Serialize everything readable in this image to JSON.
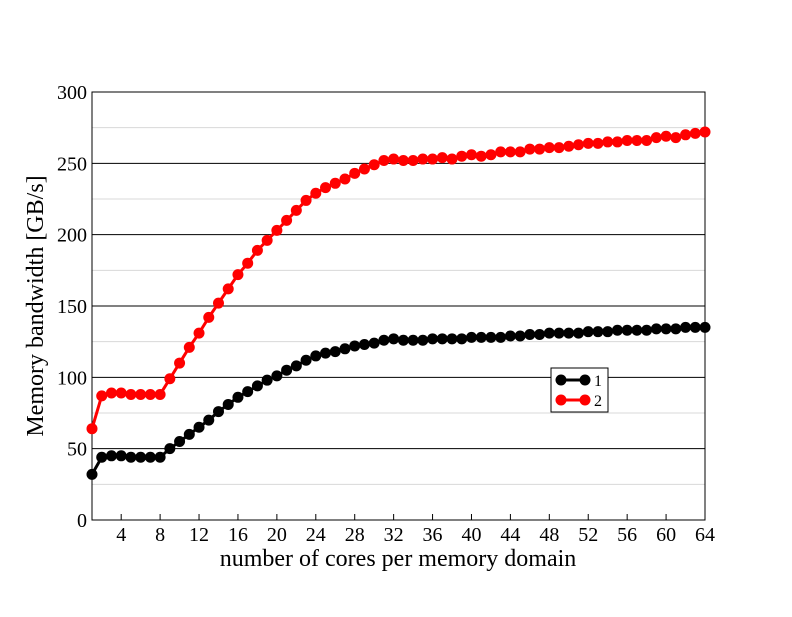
{
  "chart_data": {
    "type": "line",
    "xlabel": "number of cores per memory domain",
    "ylabel": "Memory bandwidth [GB/s]",
    "x": [
      1,
      2,
      3,
      4,
      5,
      6,
      7,
      8,
      9,
      10,
      11,
      12,
      13,
      14,
      15,
      16,
      17,
      18,
      19,
      20,
      21,
      22,
      23,
      24,
      25,
      26,
      27,
      28,
      29,
      30,
      31,
      32,
      33,
      34,
      35,
      36,
      37,
      38,
      39,
      40,
      41,
      42,
      43,
      44,
      45,
      46,
      47,
      48,
      49,
      50,
      51,
      52,
      53,
      54,
      55,
      56,
      57,
      58,
      59,
      60,
      61,
      62,
      63,
      64
    ],
    "series": [
      {
        "name": "1",
        "color": "#000000",
        "values": [
          32,
          44,
          45,
          45,
          44,
          44,
          44,
          44,
          50,
          55,
          60,
          65,
          70,
          76,
          81,
          86,
          90,
          94,
          98,
          101,
          105,
          108,
          112,
          115,
          117,
          118,
          120,
          122,
          123,
          124,
          126,
          127,
          126,
          126,
          126,
          127,
          127,
          127,
          127,
          128,
          128,
          128,
          128,
          129,
          129,
          130,
          130,
          131,
          131,
          131,
          131,
          132,
          132,
          132,
          133,
          133,
          133,
          133,
          134,
          134,
          134,
          135,
          135,
          135
        ]
      },
      {
        "name": "2",
        "color": "#ff0000",
        "values": [
          64,
          87,
          89,
          89,
          88,
          88,
          88,
          88,
          99,
          110,
          121,
          131,
          142,
          152,
          162,
          172,
          180,
          189,
          196,
          203,
          210,
          217,
          224,
          229,
          233,
          236,
          239,
          243,
          246,
          249,
          252,
          253,
          252,
          252,
          253,
          253,
          254,
          253,
          255,
          256,
          255,
          256,
          258,
          258,
          258,
          260,
          260,
          261,
          261,
          262,
          263,
          264,
          264,
          265,
          265,
          266,
          266,
          266,
          268,
          269,
          268,
          270,
          271,
          272
        ]
      }
    ],
    "xlim": [
      1,
      64
    ],
    "xticks": [
      4,
      8,
      12,
      16,
      20,
      24,
      28,
      32,
      36,
      40,
      44,
      48,
      52,
      56,
      60,
      64
    ],
    "ylim": [
      0,
      300
    ],
    "yticks": [
      0,
      50,
      100,
      150,
      200,
      250,
      300
    ],
    "minor_yticks": [
      25,
      75,
      125,
      175,
      225,
      275
    ],
    "grid": true,
    "legend": "right"
  }
}
